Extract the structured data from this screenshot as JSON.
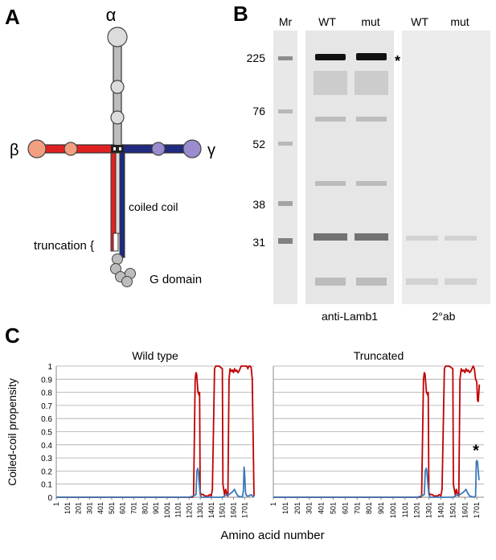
{
  "panels": {
    "A": {
      "letter": "A",
      "chains": {
        "alpha": "α",
        "beta": "β",
        "gamma": "γ"
      },
      "labels": {
        "coiled_coil": "coiled coil",
        "truncation": "truncation {",
        "g_domain": "G domain"
      },
      "colors": {
        "alpha": "#bdbdbd",
        "beta": "#e02020",
        "gamma": "#1f2a80",
        "beta_ball": "#f2a080",
        "gamma_ball": "#9a8ccf"
      }
    },
    "B": {
      "letter": "B",
      "lane_labels": [
        "Mr",
        "WT",
        "mut",
        "WT",
        "mut"
      ],
      "markers": [
        "225",
        "76",
        "52",
        "38",
        "31"
      ],
      "asterisk": "*",
      "blot_labels": [
        "anti-Lamb1",
        "2°ab"
      ]
    },
    "C": {
      "letter": "C",
      "y_axis_label": "Coiled-coil propensity",
      "x_axis_label": "Amino acid number",
      "asterisk": "*"
    }
  },
  "chart_data": [
    {
      "type": "line",
      "title": "Wild type",
      "ylim": [
        0,
        1
      ],
      "yticks": [
        "0",
        "0.1",
        "0.2",
        "0.3",
        "0.4",
        "0.5",
        "0.6",
        "0.7",
        "0.8",
        "0.9",
        "1"
      ],
      "xticks": [
        "1",
        "101",
        "201",
        "301",
        "401",
        "501",
        "601",
        "701",
        "801",
        "901",
        "1001",
        "1101",
        "1201",
        "1301",
        "1401",
        "1501",
        "1601",
        "1701"
      ],
      "xlim": [
        1,
        1786
      ],
      "grid": true,
      "series": [
        {
          "color": "#c00000",
          "x": [
            1,
            1200,
            1230,
            1240,
            1255,
            1262,
            1268,
            1280,
            1290,
            1295,
            1300,
            1310,
            1330,
            1340,
            1375,
            1385,
            1400,
            1410,
            1430,
            1440,
            1450,
            1460,
            1470,
            1500,
            1505,
            1520,
            1530,
            1540,
            1550,
            1560,
            1570,
            1580,
            1590,
            1600,
            1610,
            1620,
            1630,
            1640,
            1650,
            1660,
            1670,
            1690,
            1700,
            1710,
            1720,
            1730,
            1740,
            1750,
            1760,
            1770,
            1786
          ],
          "y": [
            0,
            0,
            0,
            0.01,
            0.9,
            0.95,
            0.94,
            0.8,
            0.78,
            0.8,
            0.04,
            0.02,
            0.02,
            0.01,
            0.01,
            0.02,
            0.01,
            0.06,
            0.98,
            1.0,
            1.0,
            1.0,
            1.0,
            0.98,
            0.1,
            0.02,
            0.06,
            0.02,
            0.01,
            0.9,
            0.98,
            0.96,
            0.97,
            0.95,
            0.98,
            0.96,
            0.97,
            0.95,
            0.96,
            0.98,
            1.0,
            1.0,
            1.0,
            1.0,
            1.0,
            0.98,
            1.0,
            1.0,
            0.99,
            0.9,
            0.01
          ]
        },
        {
          "color": "#3b78b8",
          "x": [
            1,
            1200,
            1240,
            1262,
            1270,
            1278,
            1285,
            1290,
            1300,
            1310,
            1400,
            1500,
            1520,
            1540,
            1560,
            1590,
            1600,
            1610,
            1620,
            1640,
            1680,
            1690,
            1696,
            1700,
            1705,
            1710,
            1720,
            1740,
            1760,
            1786
          ],
          "y": [
            0,
            0,
            0.01,
            0.02,
            0.2,
            0.22,
            0.19,
            0.12,
            0.02,
            0,
            0,
            0,
            0.01,
            0.02,
            0.02,
            0.04,
            0.05,
            0.06,
            0.04,
            0.01,
            0,
            0.05,
            0.23,
            0.2,
            0.12,
            0.03,
            0.01,
            0.01,
            0.02,
            0
          ]
        }
      ]
    },
    {
      "type": "line",
      "title": "Truncated",
      "ylim": [
        0,
        1
      ],
      "yticks": [
        "0",
        "0.1",
        "0.2",
        "0.3",
        "0.4",
        "0.5",
        "0.6",
        "0.7",
        "0.8",
        "0.9",
        "1"
      ],
      "xticks": [
        "1",
        "101",
        "201",
        "301",
        "401",
        "501",
        "601",
        "701",
        "801",
        "901",
        "1001",
        "1101",
        "1201",
        "1301",
        "1401",
        "1501",
        "1601",
        "1701"
      ],
      "xlim": [
        1,
        1760
      ],
      "grid": true,
      "series": [
        {
          "color": "#c00000",
          "x": [
            1,
            1200,
            1230,
            1240,
            1255,
            1262,
            1268,
            1280,
            1290,
            1295,
            1300,
            1310,
            1330,
            1340,
            1375,
            1385,
            1400,
            1410,
            1430,
            1440,
            1450,
            1460,
            1470,
            1500,
            1505,
            1520,
            1530,
            1540,
            1550,
            1560,
            1570,
            1580,
            1590,
            1600,
            1610,
            1620,
            1630,
            1640,
            1650,
            1660,
            1670,
            1680,
            1690,
            1700,
            1706,
            1712,
            1718,
            1722
          ],
          "y": [
            0,
            0,
            0,
            0.01,
            0.9,
            0.95,
            0.94,
            0.8,
            0.78,
            0.8,
            0.04,
            0.02,
            0.02,
            0.01,
            0.01,
            0.02,
            0.01,
            0.06,
            0.98,
            1.0,
            1.0,
            1.0,
            1.0,
            0.98,
            0.1,
            0.02,
            0.06,
            0.02,
            0.01,
            0.9,
            0.98,
            0.96,
            0.97,
            0.95,
            0.98,
            0.96,
            0.97,
            0.95,
            0.96,
            0.98,
            1.0,
            0.98,
            0.9,
            0.88,
            0.74,
            0.73,
            0.8,
            0.86
          ]
        },
        {
          "color": "#3b78b8",
          "x": [
            1,
            1200,
            1240,
            1262,
            1270,
            1278,
            1285,
            1290,
            1300,
            1310,
            1400,
            1500,
            1520,
            1540,
            1560,
            1590,
            1600,
            1610,
            1620,
            1640,
            1680,
            1690,
            1696,
            1700,
            1706,
            1712,
            1718,
            1722
          ],
          "y": [
            0,
            0,
            0.01,
            0.02,
            0.2,
            0.22,
            0.19,
            0.12,
            0.02,
            0,
            0,
            0,
            0.01,
            0.02,
            0.02,
            0.04,
            0.05,
            0.06,
            0.04,
            0.01,
            0,
            0.01,
            0.27,
            0.28,
            0.27,
            0.2,
            0.14,
            0.13
          ]
        }
      ]
    }
  ]
}
